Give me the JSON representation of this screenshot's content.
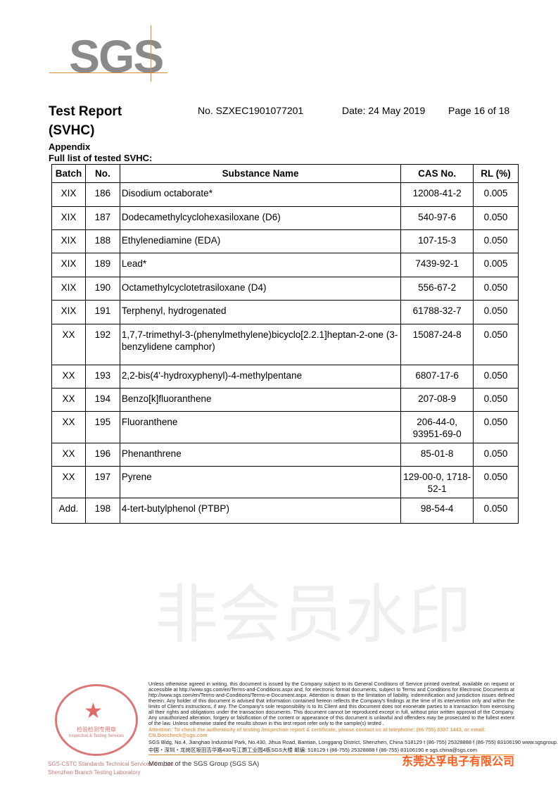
{
  "logo": "SGS",
  "header": {
    "title_line1": "Test Report",
    "title_line2": "(SVHC)",
    "report_no": "No. SZXEC1901077201",
    "date": "Date: 24 May 2019",
    "page": "Page 16 of 18"
  },
  "section": {
    "heading": "Appendix",
    "subheading": "Full list of tested SVHC:"
  },
  "table": {
    "columns": [
      "Batch",
      "No.",
      "Substance Name",
      "CAS No.",
      "RL (%)"
    ],
    "rows": [
      {
        "batch": "XIX",
        "no": "186",
        "name": "Disodium octaborate*",
        "cas": "12008-41-2",
        "rl": "0.005"
      },
      {
        "batch": "XIX",
        "no": "187",
        "name": "Dodecamethylcyclohexasiloxane (D6)",
        "cas": "540-97-6",
        "rl": "0.050"
      },
      {
        "batch": "XIX",
        "no": "188",
        "name": "Ethylenediamine (EDA)",
        "cas": "107-15-3",
        "rl": "0.050"
      },
      {
        "batch": "XIX",
        "no": "189",
        "name": "Lead*",
        "cas": "7439-92-1",
        "rl": "0.005"
      },
      {
        "batch": "XIX",
        "no": "190",
        "name": "Octamethylcyclotetrasiloxane (D4)",
        "cas": "556-67-2",
        "rl": "0.050"
      },
      {
        "batch": "XIX",
        "no": "191",
        "name": "Terphenyl, hydrogenated",
        "cas": "61788-32-7",
        "rl": "0.050"
      },
      {
        "batch": "XX",
        "no": "192",
        "name": "1,7,7-trimethyl-3-(phenylmethylene)bicyclo[2.2.1]heptan-2-one (3-benzylidene camphor)",
        "cas": "15087-24-8",
        "rl": "0.050"
      },
      {
        "batch": "XX",
        "no": "193",
        "name": "2,2-bis(4'-hydroxyphenyl)-4-methylpentane",
        "cas": "6807-17-6",
        "rl": "0.050"
      },
      {
        "batch": "XX",
        "no": "194",
        "name": "Benzo[k]fluoranthene",
        "cas": "207-08-9",
        "rl": "0.050"
      },
      {
        "batch": "XX",
        "no": "195",
        "name": "Fluoranthene",
        "cas": "206-44-0, 93951-69-0",
        "rl": "0.050"
      },
      {
        "batch": "XX",
        "no": "196",
        "name": "Phenanthrene",
        "cas": "85-01-8",
        "rl": "0.050"
      },
      {
        "batch": "XX",
        "no": "197",
        "name": "Pyrene",
        "cas": "129-00-0, 1718-52-1",
        "rl": "0.050"
      },
      {
        "batch": "Add.",
        "no": "198",
        "name": "4-tert-butylphenol (PTBP)",
        "cas": "98-54-4",
        "rl": "0.050"
      }
    ]
  },
  "footer": {
    "disclaimer": "Unless otherwise agreed in writing, this document is issued by the Company subject to its General Conditions of Service printed overleaf, available on request or accessible at http://www.sgs.com/en/Terms-and-Conditions.aspx and, for electronic format documents, subject to Terms and Conditions for Electronic Documents at http://www.sgs.com/en/Terms-and-Conditions/Terms-e-Document.aspx. Attention is drawn to the limitation of liability, indemnification and jurisdiction issues defined therein. Any holder of this document is advised that information contained hereon reflects the Company's findings at the time of its intervention only and within the limits of Client's instructions, if any. The Company's sole responsibility is to its Client and this document does not exonerate parties to a transaction from exercising all their rights and obligations under the transaction documents. This document cannot be reproduced except in full, without prior written approval of the Company. Any unauthorized alteration, forgery or falsification of the content or appearance of this document is unlawful and offenders may be prosecuted to the fullest extent of the law. Unless otherwise stated the results shown in this test report refer only to the sample(s) tested .",
    "attention": "Attention: To check the authenticity of testing /inspection report & certificate, please contact us at telephone: (86-755) 8307 1443, or email: CN.Doccheck@sgs.com",
    "address_en": "SGS Bldg, No.4, Jianghao Industrial Park, No.430, Jihua Road, Bantian, Longgang District, Shenzhen, China 518129   t (86-755) 25328888   f (86-755) 83106190   www.sgsgroup.com.cn",
    "address_cn": "中国・深圳・龙岗区坂田吉华路430号江灏工业园4栋SGS大楼   邮编: 518129   t (86-755) 25328888   f (86-755) 83106190   e sgs.china@sgs.com",
    "company_en_line1": "SGS-CSTC Standards Technical Services Co., Ltd.",
    "company_en_line2": "Shenzhen Branch Testing Laboratory",
    "member": "Member of the SGS Group (SGS SA)",
    "stamp_cn": "检验检测专用章",
    "stamp_en": "Inspection & Testing Services",
    "overlay_company": "东莞达孚电子有限公司",
    "watermark": "非会员水印"
  }
}
